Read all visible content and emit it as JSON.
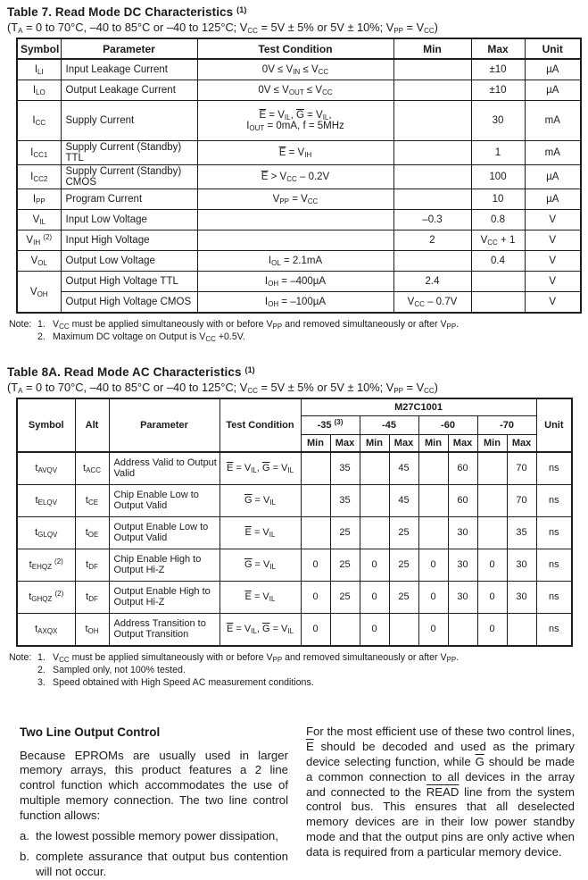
{
  "table7": {
    "title_html": "Table 7. Read Mode DC Characteristics <sup>(1)</sup>",
    "subtitle_html": "(T<sub>A</sub> = 0 to 70&deg;C, –40 to 85&deg;C or –40 to 125&deg;C; V<sub>CC</sub> = 5V &plusmn; 5% or 5V &plusmn; 10%; V<sub>PP</sub> = V<sub>CC</sub>)",
    "columns": [
      "Symbol",
      "Parameter",
      "Test Condition",
      "Min",
      "Max",
      "Unit"
    ],
    "rows": [
      {
        "symbol": "I<sub>LI</sub>",
        "parameter": "Input Leakage Current",
        "condition": "0V &le; V<sub>IN</sub> &le; V<sub>CC</sub>",
        "min": "",
        "max": "±10",
        "unit": "µA"
      },
      {
        "symbol": "I<sub>LO</sub>",
        "parameter": "Output Leakage Current",
        "condition": "0V &le; V<sub>OUT</sub> &le; V<sub>CC</sub>",
        "min": "",
        "max": "±10",
        "unit": "µA"
      },
      {
        "symbol": "I<sub>CC</sub>",
        "parameter": "Supply Current",
        "condition": "<span class='ov'>E</span> = V<sub>IL</sub>, <span class='ov'>G</span> = V<sub>IL</sub>,<br>I<sub>OUT</sub> = 0mA, f = 5MHz",
        "min": "",
        "max": "30",
        "unit": "mA",
        "tall": true
      },
      {
        "symbol": "I<sub>CC1</sub>",
        "parameter": "Supply Current (Standby) TTL",
        "condition": "<span class='ov'>E</span> = V<sub>IH</sub>",
        "min": "",
        "max": "1",
        "unit": "mA"
      },
      {
        "symbol": "I<sub>CC2</sub>",
        "parameter": "Supply Current (Standby) CMOS",
        "condition": "<span class='ov'>E</span> &gt; V<sub>CC</sub> – 0.2V",
        "min": "",
        "max": "100",
        "unit": "µA"
      },
      {
        "symbol": "I<sub>PP</sub>",
        "parameter": "Program Current",
        "condition": "V<sub>PP</sub> = V<sub>CC</sub>",
        "min": "",
        "max": "10",
        "unit": "µA"
      },
      {
        "symbol": "V<sub>IL</sub>",
        "parameter": "Input Low Voltage",
        "condition": "",
        "min": "–0.3",
        "max": "0.8",
        "unit": "V"
      },
      {
        "symbol": "V<sub>IH</sub> <sup>(2)</sup>",
        "parameter": "Input High Voltage",
        "condition": "",
        "min": "2",
        "max": "V<sub>CC</sub> + 1",
        "unit": "V"
      },
      {
        "symbol": "V<sub>OL</sub>",
        "parameter": "Output Low Voltage",
        "condition": "I<sub>OL</sub> = 2.1mA",
        "min": "",
        "max": "0.4",
        "unit": "V"
      },
      {
        "symbol": "V<sub>OH</sub>",
        "symbol_rowspan": 2,
        "parameter": "Output High Voltage TTL",
        "condition": "I<sub>OH</sub> = –400µA",
        "min": "2.4",
        "max": "",
        "unit": "V"
      },
      {
        "symbol_skip": true,
        "parameter": "Output High Voltage CMOS",
        "condition": "I<sub>OH</sub> = –100µA",
        "min": "V<sub>CC</sub> – 0.7V",
        "max": "",
        "unit": "V"
      }
    ],
    "notes": {
      "label": "Note:",
      "items": [
        {
          "num": "1.",
          "html": "V<sub>CC</sub> must be applied simultaneously with or before V<sub>PP</sub> and removed simultaneously or after V<sub>PP</sub>."
        },
        {
          "num": "2.",
          "html": "Maximum DC voltage on Output is V<sub>CC</sub> +0.5V."
        }
      ]
    }
  },
  "table8a": {
    "title_html": "Table 8A. Read Mode AC Characteristics <sup>(1)</sup>",
    "subtitle_html": "(T<sub>A</sub> = 0 to 70&deg;C, –40 to 85&deg;C or –40 to 125&deg;C; V<sub>CC</sub> = 5V &plusmn; 5% or 5V &plusmn; 10%; V<sub>PP</sub> = V<sub>CC</sub>)",
    "header": {
      "symbol": "Symbol",
      "alt": "Alt",
      "parameter": "Parameter",
      "condition": "Test Condition",
      "device": "M27C1001",
      "unit": "Unit",
      "grades": [
        "-35 <sup>(3)</sup>",
        "-45",
        "-60",
        "-70"
      ],
      "minmax": [
        "Min",
        "Max",
        "Min",
        "Max",
        "Min",
        "Max",
        "Min",
        "Max"
      ]
    },
    "rows": [
      {
        "symbol": "t<sub>AVQV</sub>",
        "alt": "t<sub>ACC</sub>",
        "parameter": "Address Valid to Output Valid",
        "condition": "<span class='ov'>E</span> = V<sub>IL</sub>, <span class='ov'>G</span> = V<sub>IL</sub>",
        "values": [
          "",
          "35",
          "",
          "45",
          "",
          "60",
          "",
          "70"
        ],
        "unit": "ns"
      },
      {
        "symbol": "t<sub>ELQV</sub>",
        "alt": "t<sub>CE</sub>",
        "parameter": "Chip Enable Low to Output Valid",
        "condition": "<span class='ov'>G</span> = V<sub>IL</sub>",
        "values": [
          "",
          "35",
          "",
          "45",
          "",
          "60",
          "",
          "70"
        ],
        "unit": "ns"
      },
      {
        "symbol": "t<sub>GLQV</sub>",
        "alt": "t<sub>OE</sub>",
        "parameter": "Output Enable Low to Output Valid",
        "condition": "<span class='ov'>E</span> = V<sub>IL</sub>",
        "values": [
          "",
          "25",
          "",
          "25",
          "",
          "30",
          "",
          "35"
        ],
        "unit": "ns"
      },
      {
        "symbol": "t<sub>EHQZ</sub> <sup>(2)</sup>",
        "alt": "t<sub>DF</sub>",
        "parameter": "Chip Enable High to Output Hi-Z",
        "condition": "<span class='ov'>G</span> = V<sub>IL</sub>",
        "values": [
          "0",
          "25",
          "0",
          "25",
          "0",
          "30",
          "0",
          "30"
        ],
        "unit": "ns"
      },
      {
        "symbol": "t<sub>GHQZ</sub> <sup>(2)</sup>",
        "alt": "t<sub>DF</sub>",
        "parameter": "Output Enable High to Output Hi-Z",
        "condition": "<span class='ov'>E</span> = V<sub>IL</sub>",
        "values": [
          "0",
          "25",
          "0",
          "25",
          "0",
          "30",
          "0",
          "30"
        ],
        "unit": "ns"
      },
      {
        "symbol": "t<sub>AXQX</sub>",
        "alt": "t<sub>OH</sub>",
        "parameter": "Address Transition to Output Transition",
        "condition": "<span class='ov'>E</span> = V<sub>IL</sub>, <span class='ov'>G</span> = V<sub>IL</sub>",
        "values": [
          "0",
          "",
          "0",
          "",
          "0",
          "",
          "0",
          ""
        ],
        "unit": "ns"
      }
    ],
    "notes": {
      "label": "Note:",
      "items": [
        {
          "num": "1.",
          "html": "V<sub>CC</sub> must be applied simultaneously with or before V<sub>PP</sub> and removed simultaneously or after V<sub>PP</sub>."
        },
        {
          "num": "2.",
          "html": "Sampled only, not 100% tested."
        },
        {
          "num": "3.",
          "html": "Speed obtained with High Speed AC measurement conditions."
        }
      ]
    }
  },
  "section": {
    "heading": "Two Line Output Control",
    "left_paragraph": "Because EPROMs are usually used in larger memory arrays, this product features a 2 line control function which accommodates the use of multiple memory connection. The two line control function allows:",
    "items": [
      {
        "num": "a.",
        "text": "the lowest possible memory power dissipation,"
      },
      {
        "num": "b.",
        "text": "complete assurance that output bus contention will not occur."
      }
    ],
    "right_paragraph_html": "For the most efficient use of these two control lines, <span class='ov'>E</span> should be decoded and used as the primary device selecting function, while <span class='ov'>G</span> should be made a common connection to all devices in the array and connected to the <span class='ov'>READ</span> line from the system control bus. This ensures that all deselected memory devices are in their low power standby mode and that the output pins are only active when data is required from a particular memory device."
  }
}
